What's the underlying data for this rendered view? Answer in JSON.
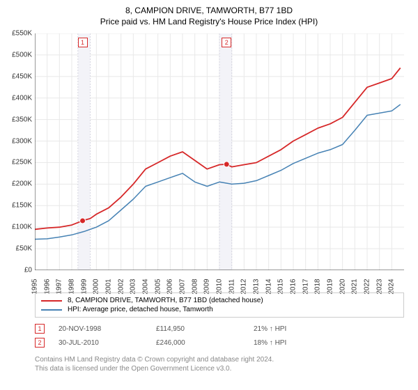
{
  "title": "8, CAMPION DRIVE, TAMWORTH, B77 1BD",
  "subtitle": "Price paid vs. HM Land Registry's House Price Index (HPI)",
  "chart": {
    "type": "line",
    "background_color": "#ffffff",
    "grid_color": "#e8e8e8",
    "axis_color": "#333333",
    "y": {
      "min": 0,
      "max": 550000,
      "tick_step": 50000,
      "labels": [
        "£0",
        "£50K",
        "£100K",
        "£150K",
        "£200K",
        "£250K",
        "£300K",
        "£350K",
        "£400K",
        "£450K",
        "£500K",
        "£550K"
      ]
    },
    "x": {
      "min": 1995,
      "max": 2025,
      "labels": [
        "1995",
        "1996",
        "1997",
        "1998",
        "1999",
        "2000",
        "2001",
        "2002",
        "2003",
        "2004",
        "2005",
        "2006",
        "2007",
        "2008",
        "2009",
        "2010",
        "2011",
        "2012",
        "2013",
        "2014",
        "2015",
        "2016",
        "2017",
        "2018",
        "2019",
        "2020",
        "2021",
        "2022",
        "2023",
        "2024"
      ]
    },
    "series": [
      {
        "name": "price_paid",
        "color": "#d62728",
        "width": 1.8,
        "data": [
          [
            1995,
            95000
          ],
          [
            1996,
            98000
          ],
          [
            1997,
            100000
          ],
          [
            1998,
            105000
          ],
          [
            1998.88,
            114950
          ],
          [
            1999.5,
            120000
          ],
          [
            2000,
            130000
          ],
          [
            2001,
            145000
          ],
          [
            2002,
            170000
          ],
          [
            2003,
            200000
          ],
          [
            2004,
            235000
          ],
          [
            2005,
            250000
          ],
          [
            2006,
            265000
          ],
          [
            2007,
            275000
          ],
          [
            2008,
            255000
          ],
          [
            2009,
            235000
          ],
          [
            2010,
            245000
          ],
          [
            2010.58,
            246000
          ],
          [
            2011,
            240000
          ],
          [
            2012,
            245000
          ],
          [
            2013,
            250000
          ],
          [
            2014,
            265000
          ],
          [
            2015,
            280000
          ],
          [
            2016,
            300000
          ],
          [
            2017,
            315000
          ],
          [
            2018,
            330000
          ],
          [
            2019,
            340000
          ],
          [
            2020,
            355000
          ],
          [
            2021,
            390000
          ],
          [
            2022,
            425000
          ],
          [
            2023,
            435000
          ],
          [
            2024,
            445000
          ],
          [
            2024.7,
            470000
          ]
        ]
      },
      {
        "name": "hpi",
        "color": "#4682b4",
        "width": 1.5,
        "data": [
          [
            1995,
            72000
          ],
          [
            1996,
            73000
          ],
          [
            1997,
            77000
          ],
          [
            1998,
            82000
          ],
          [
            1999,
            90000
          ],
          [
            2000,
            100000
          ],
          [
            2001,
            115000
          ],
          [
            2002,
            140000
          ],
          [
            2003,
            165000
          ],
          [
            2004,
            195000
          ],
          [
            2005,
            205000
          ],
          [
            2006,
            215000
          ],
          [
            2007,
            225000
          ],
          [
            2008,
            205000
          ],
          [
            2009,
            195000
          ],
          [
            2010,
            205000
          ],
          [
            2011,
            200000
          ],
          [
            2012,
            202000
          ],
          [
            2013,
            208000
          ],
          [
            2014,
            220000
          ],
          [
            2015,
            232000
          ],
          [
            2016,
            248000
          ],
          [
            2017,
            260000
          ],
          [
            2018,
            272000
          ],
          [
            2019,
            280000
          ],
          [
            2020,
            292000
          ],
          [
            2021,
            325000
          ],
          [
            2022,
            360000
          ],
          [
            2023,
            365000
          ],
          [
            2024,
            370000
          ],
          [
            2024.7,
            385000
          ]
        ]
      }
    ],
    "sale_markers": [
      {
        "label": "1",
        "year": 1998.88,
        "price": 114950,
        "color": "#d62728",
        "band_start": 1998.5,
        "band_end": 1999.5
      },
      {
        "label": "2",
        "year": 2010.58,
        "price": 246000,
        "color": "#d62728",
        "band_start": 2010.0,
        "band_end": 2011.0
      }
    ],
    "band_fill": "#f3f3f8",
    "band_border": "#d6d6e0"
  },
  "legend": {
    "items": [
      {
        "color": "#d62728",
        "label": "8, CAMPION DRIVE, TAMWORTH, B77 1BD (detached house)"
      },
      {
        "color": "#4682b4",
        "label": "HPI: Average price, detached house, Tamworth"
      }
    ]
  },
  "sales": [
    {
      "marker": "1",
      "marker_color": "#d62728",
      "date": "20-NOV-1998",
      "price": "£114,950",
      "delta": "21% ↑ HPI"
    },
    {
      "marker": "2",
      "marker_color": "#d62728",
      "date": "30-JUL-2010",
      "price": "£246,000",
      "delta": "18% ↑ HPI"
    }
  ],
  "note_l1": "Contains HM Land Registry data © Crown copyright and database right 2024.",
  "note_l2": "This data is licensed under the Open Government Licence v3.0."
}
